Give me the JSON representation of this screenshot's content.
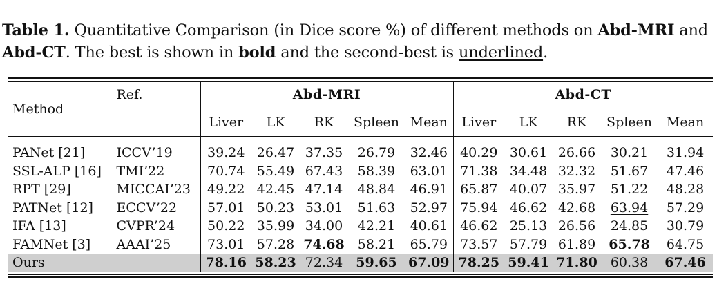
{
  "caption": {
    "label": "Table 1.",
    "text_1": " Quantitative Comparison (in Dice score %) of different methods on ",
    "bold_1": "Abd-MRI",
    "text_2": " and ",
    "bold_2": "Abd-CT",
    "text_3": ". The best is shown in ",
    "bold_3": "bold",
    "text_4": " and the second-best is ",
    "underlined_word": "underlined",
    "text_5": "."
  },
  "table": {
    "col_method": "Method",
    "col_ref": "Ref.",
    "groups": [
      "Abd-MRI",
      "Abd-CT"
    ],
    "subcols": [
      "Liver",
      "LK",
      "RK",
      "Spleen",
      "Mean",
      "Liver",
      "LK",
      "RK",
      "Spleen",
      "Mean"
    ],
    "rows": [
      {
        "method": "PANet [21]",
        "ref": "ICCV’19",
        "values": [
          "39.24",
          "26.47",
          "37.35",
          "26.79",
          "32.46",
          "40.29",
          "30.61",
          "26.66",
          "30.21",
          "31.94"
        ],
        "styles": [
          "",
          "",
          "",
          "",
          "",
          "",
          "",
          "",
          "",
          ""
        ]
      },
      {
        "method": "SSL-ALP [16]",
        "ref": "TMI’22",
        "values": [
          "70.74",
          "55.49",
          "67.43",
          "58.39",
          "63.01",
          "71.38",
          "34.48",
          "32.32",
          "51.67",
          "47.46"
        ],
        "styles": [
          "",
          "",
          "",
          "underline",
          "",
          "",
          "",
          "",
          "",
          ""
        ]
      },
      {
        "method": "RPT [29]",
        "ref": "MICCAI’23",
        "values": [
          "49.22",
          "42.45",
          "47.14",
          "48.84",
          "46.91",
          "65.87",
          "40.07",
          "35.97",
          "51.22",
          "48.28"
        ],
        "styles": [
          "",
          "",
          "",
          "",
          "",
          "",
          "",
          "",
          "",
          ""
        ]
      },
      {
        "method": "PATNet [12]",
        "ref": "ECCV’22",
        "values": [
          "57.01",
          "50.23",
          "53.01",
          "51.63",
          "52.97",
          "75.94",
          "46.62",
          "42.68",
          "63.94",
          "57.29"
        ],
        "styles": [
          "",
          "",
          "",
          "",
          "",
          "",
          "",
          "",
          "underline",
          ""
        ]
      },
      {
        "method": "IFA [13]",
        "ref": "CVPR’24",
        "values": [
          "50.22",
          "35.99",
          "34.00",
          "42.21",
          "40.61",
          "46.62",
          "25.13",
          "26.56",
          "24.85",
          "30.79"
        ],
        "styles": [
          "",
          "",
          "",
          "",
          "",
          "",
          "",
          "",
          "",
          ""
        ]
      },
      {
        "method": "FAMNet [3]",
        "ref": "AAAI’25",
        "values": [
          "73.01",
          "57.28",
          "74.68",
          "58.21",
          "65.79",
          "73.57",
          "57.79",
          "61.89",
          "65.78",
          "64.75"
        ],
        "styles": [
          "underline",
          "underline",
          "bold",
          "",
          "underline",
          "underline",
          "underline",
          "underline",
          "bold",
          "underline"
        ]
      },
      {
        "method": "Ours",
        "ref": "",
        "values": [
          "78.16",
          "58.23",
          "72.34",
          "59.65",
          "67.09",
          "78.25",
          "59.41",
          "71.80",
          "60.38",
          "67.46"
        ],
        "styles": [
          "bold",
          "bold",
          "underline",
          "bold",
          "bold",
          "bold",
          "bold",
          "bold",
          "",
          "bold"
        ],
        "highlight": "#cfcfcf"
      }
    ]
  }
}
